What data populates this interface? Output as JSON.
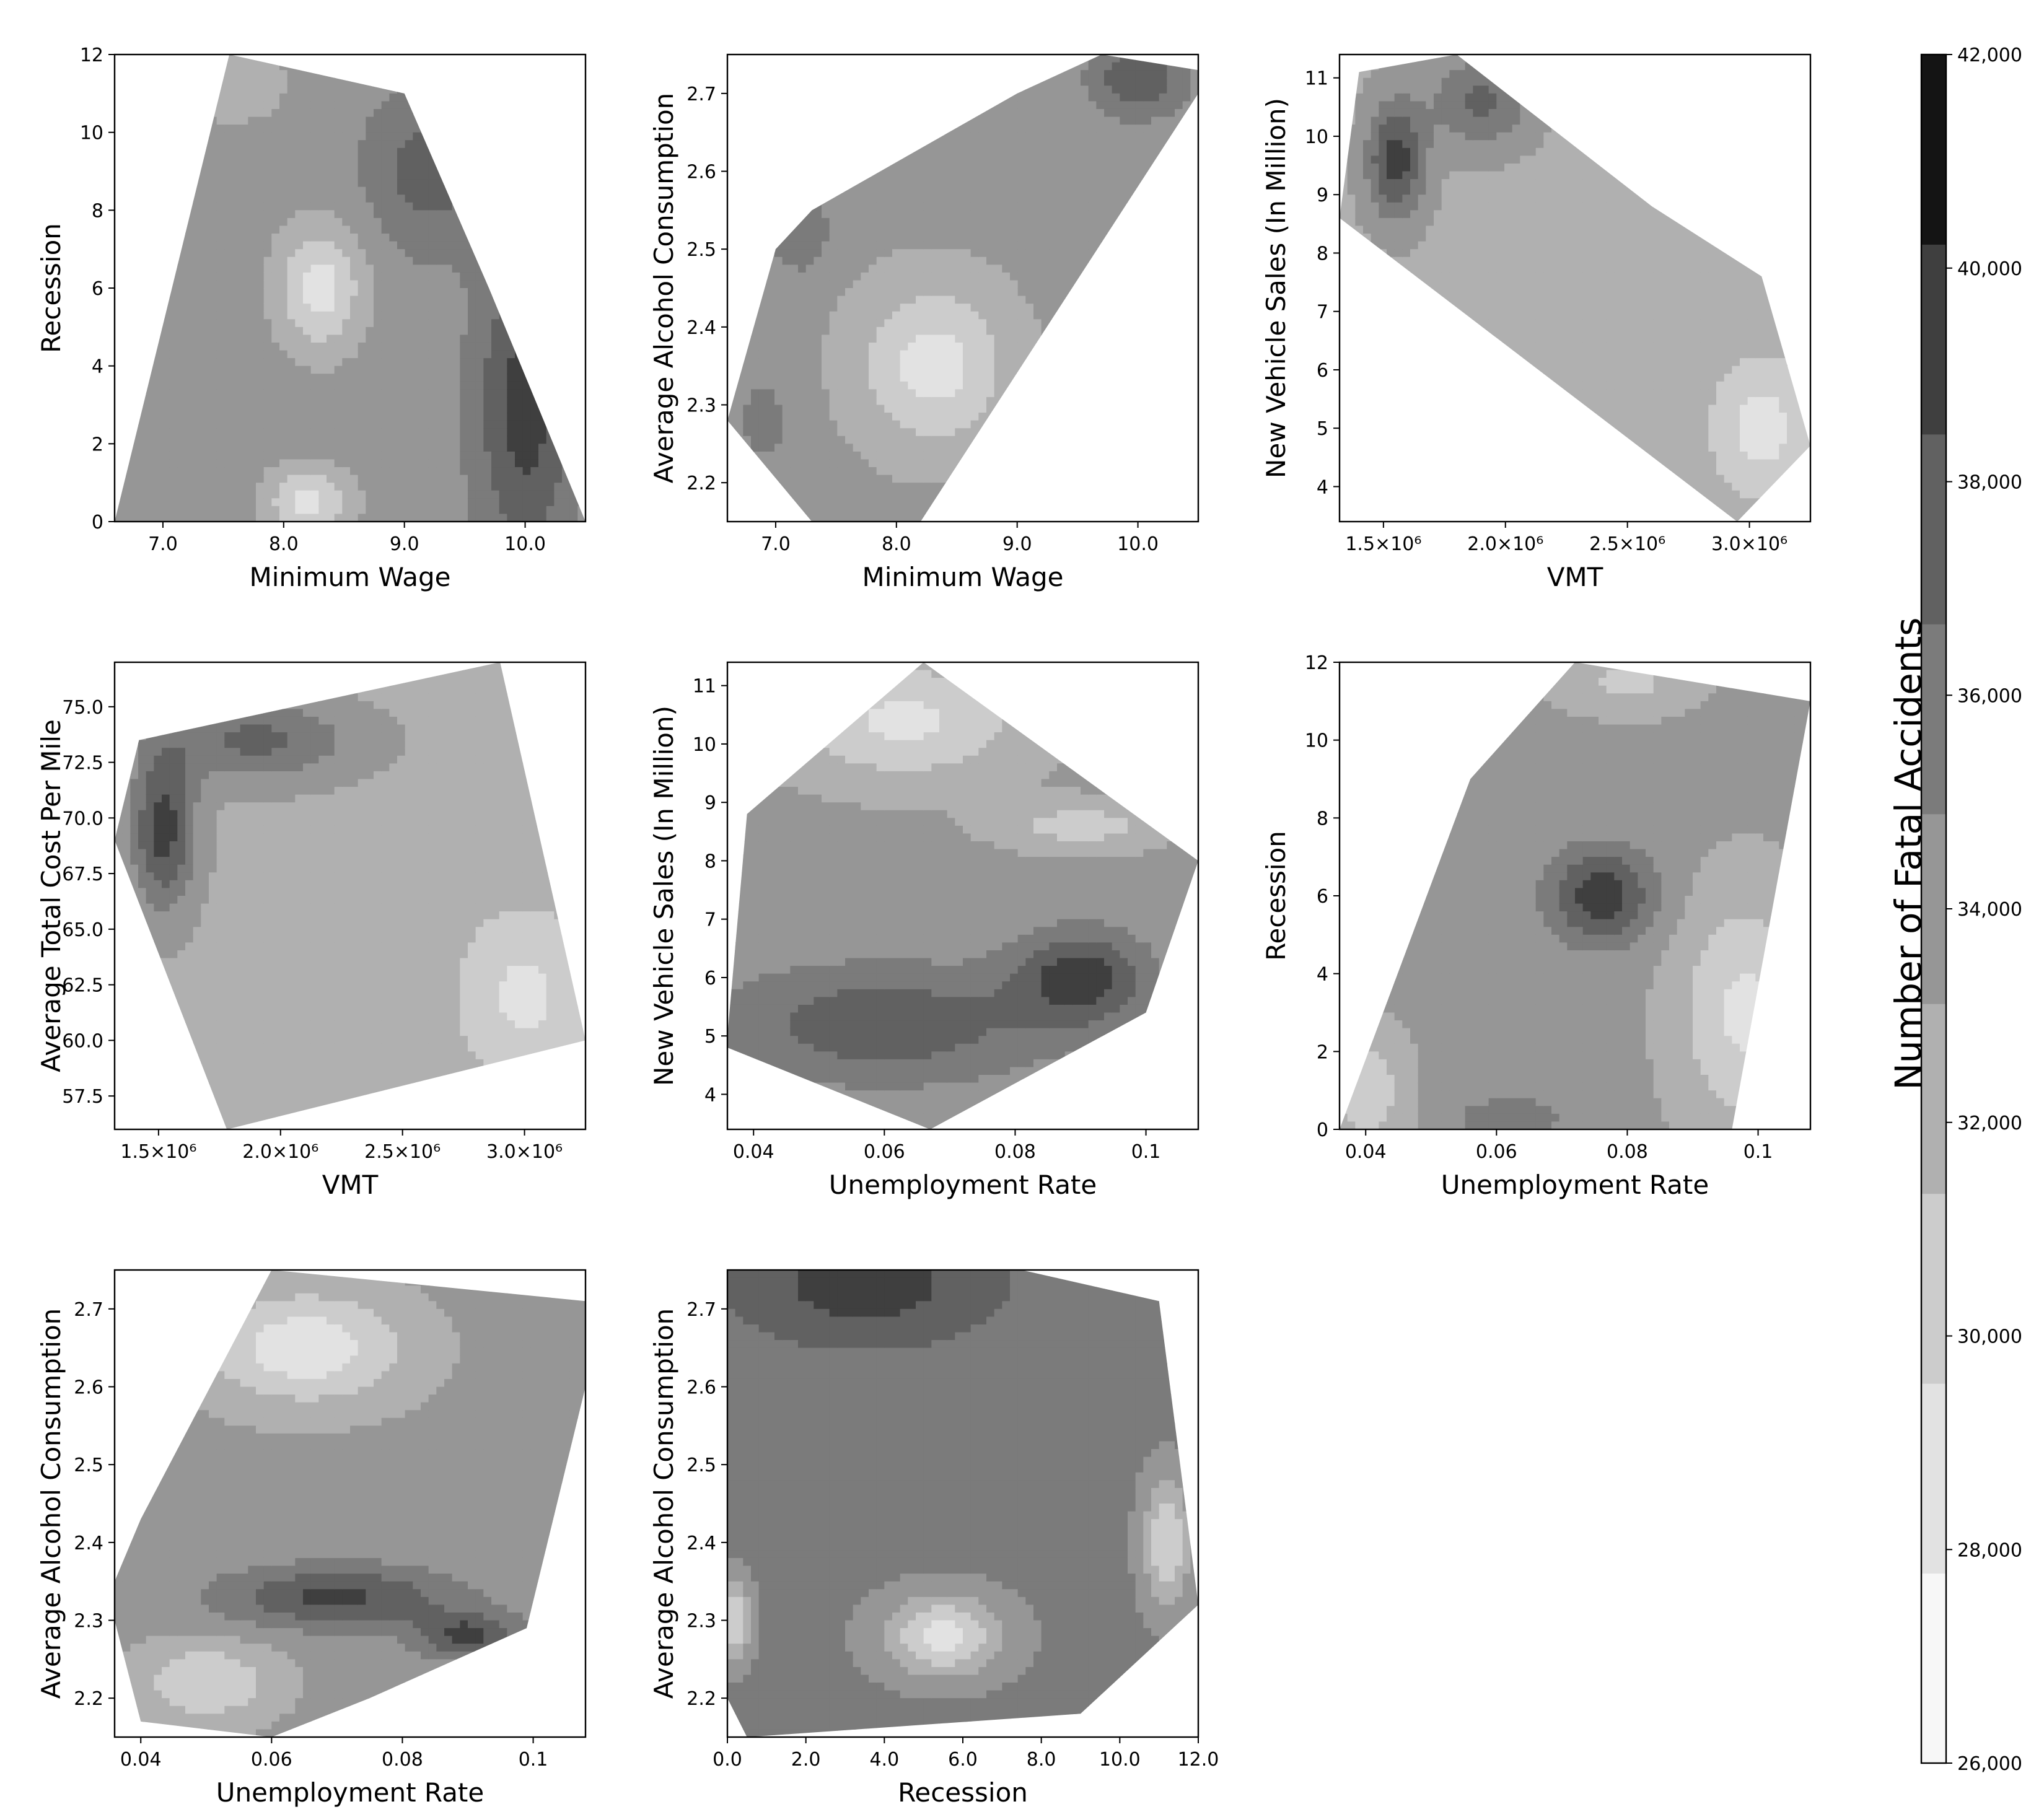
{
  "colorbar": {
    "label": "Number of Fatal Accidents",
    "levels": [
      26000,
      28000,
      30000,
      32000,
      34000,
      36000,
      38000,
      40000,
      42000
    ],
    "tick_labels": [
      "26,000",
      "28,000",
      "30,000",
      "32,000",
      "34,000",
      "36,000",
      "38,000",
      "40,000",
      "42,000"
    ],
    "colors": [
      "#f7f7f7",
      "#e2e2e2",
      "#cccccc",
      "#b0b0b0",
      "#969696",
      "#7b7b7b",
      "#616161",
      "#3f3f3f",
      "#141414"
    ]
  },
  "chart_data": [
    {
      "type": "contour",
      "xlabel": "Minimum Wage",
      "ylabel": "Recession",
      "xlim": [
        6.6,
        10.5
      ],
      "ylim": [
        0,
        12
      ],
      "xticks": [
        7.0,
        8.0,
        9.0,
        10.0
      ],
      "xtick_labels": [
        "7.0",
        "8.0",
        "9.0",
        "10.0"
      ],
      "yticks": [
        0,
        2,
        4,
        6,
        8,
        10,
        12
      ],
      "ytick_labels": [
        "0",
        "2",
        "4",
        "6",
        "8",
        "10",
        "12"
      ],
      "hull": [
        [
          6.6,
          0
        ],
        [
          7.55,
          12
        ],
        [
          9.0,
          11
        ],
        [
          9.7,
          6
        ],
        [
          10.5,
          0
        ]
      ],
      "peaks": [
        {
          "x": 10.0,
          "y": 3.0,
          "value": 41000,
          "sx": 0.4,
          "sy": 4.0
        },
        {
          "x": 9.2,
          "y": 9.0,
          "value": 39000,
          "sx": 0.5,
          "sy": 2.0
        }
      ],
      "pits": [
        {
          "x": 8.3,
          "y": 6.0,
          "value": 29000,
          "sx": 0.35,
          "sy": 1.6
        },
        {
          "x": 8.2,
          "y": 0.5,
          "value": 29500,
          "sx": 0.35,
          "sy": 0.9
        },
        {
          "x": 7.6,
          "y": 11.3,
          "value": 32000,
          "sx": 0.4,
          "sy": 1.0
        }
      ],
      "base": 35000
    },
    {
      "type": "contour",
      "xlabel": "Minimum Wage",
      "ylabel": "Average Alcohol Consumption",
      "xlim": [
        6.6,
        10.5
      ],
      "ylim": [
        2.15,
        2.75
      ],
      "xticks": [
        7.0,
        8.0,
        9.0,
        10.0
      ],
      "xtick_labels": [
        "7.0",
        "8.0",
        "9.0",
        "10.0"
      ],
      "yticks": [
        2.2,
        2.3,
        2.4,
        2.5,
        2.6,
        2.7
      ],
      "ytick_labels": [
        "2.2",
        "2.3",
        "2.4",
        "2.5",
        "2.6",
        "2.7"
      ],
      "hull": [
        [
          6.6,
          2.28
        ],
        [
          7.0,
          2.5
        ],
        [
          7.3,
          2.55
        ],
        [
          9.0,
          2.7
        ],
        [
          9.7,
          2.75
        ],
        [
          10.5,
          2.73
        ],
        [
          10.5,
          2.7
        ],
        [
          8.2,
          2.15
        ],
        [
          7.3,
          2.15
        ]
      ],
      "peaks": [
        {
          "x": 10.0,
          "y": 2.72,
          "value": 40000,
          "sx": 0.4,
          "sy": 0.05
        },
        {
          "x": 7.2,
          "y": 2.52,
          "value": 38000,
          "sx": 0.25,
          "sy": 0.05
        },
        {
          "x": 6.9,
          "y": 2.28,
          "value": 36500,
          "sx": 0.3,
          "sy": 0.08
        }
      ],
      "pits": [
        {
          "x": 8.3,
          "y": 2.35,
          "value": 29000,
          "sx": 0.6,
          "sy": 0.1
        }
      ],
      "base": 34500
    },
    {
      "type": "contour",
      "xlabel": "VMT",
      "ylabel": "New Vehicle Sales (In Million)",
      "xlim": [
        1320000,
        3250000
      ],
      "ylim": [
        3.4,
        11.4
      ],
      "xticks": [
        1500000,
        2000000,
        2500000,
        3000000
      ],
      "xtick_labels": [
        "1.5×10⁶",
        "2.0×10⁶",
        "2.5×10⁶",
        "3.0×10⁶"
      ],
      "yticks": [
        4,
        5,
        6,
        7,
        8,
        9,
        10,
        11
      ],
      "ytick_labels": [
        "4",
        "5",
        "6",
        "7",
        "8",
        "9",
        "10",
        "11"
      ],
      "hull": [
        [
          1320000,
          8.6
        ],
        [
          1400000,
          11.1
        ],
        [
          1800000,
          11.4
        ],
        [
          2600000,
          8.8
        ],
        [
          3050000,
          7.6
        ],
        [
          3250000,
          4.7
        ],
        [
          2950000,
          3.4
        ]
      ],
      "peaks": [
        {
          "x": 1550000,
          "y": 9.6,
          "value": 41000,
          "sx": 120000,
          "sy": 1.0
        },
        {
          "x": 1900000,
          "y": 10.6,
          "value": 38500,
          "sx": 200000,
          "sy": 0.8
        }
      ],
      "pits": [
        {
          "x": 3050000,
          "y": 5.0,
          "value": 29000,
          "sx": 200000,
          "sy": 1.2
        }
      ],
      "base": 33500
    },
    {
      "type": "contour",
      "xlabel": "VMT",
      "ylabel": "Average Total Cost Per Mile",
      "xlim": [
        1320000,
        3250000
      ],
      "ylim": [
        56,
        77
      ],
      "xticks": [
        1500000,
        2000000,
        2500000,
        3000000
      ],
      "xtick_labels": [
        "1.5×10⁶",
        "2.0×10⁶",
        "2.5×10⁶",
        "3.0×10⁶"
      ],
      "yticks": [
        57.5,
        60.0,
        62.5,
        65.0,
        67.5,
        70.0,
        72.5,
        75.0
      ],
      "ytick_labels": [
        "57.5",
        "60.0",
        "62.5",
        "65.0",
        "67.5",
        "70.0",
        "72.5",
        "75.0"
      ],
      "hull": [
        [
          1320000,
          69
        ],
        [
          1420000,
          73.5
        ],
        [
          2900000,
          77
        ],
        [
          3250000,
          60
        ],
        [
          1780000,
          56
        ]
      ],
      "peaks": [
        {
          "x": 1520000,
          "y": 69.5,
          "value": 41000,
          "sx": 130000,
          "sy": 3.5
        },
        {
          "x": 1900000,
          "y": 73.5,
          "value": 38500,
          "sx": 400000,
          "sy": 1.8
        }
      ],
      "pits": [
        {
          "x": 3000000,
          "y": 62.0,
          "value": 29500,
          "sx": 280000,
          "sy": 4.0
        }
      ],
      "base": 33500
    },
    {
      "type": "contour",
      "xlabel": "Unemployment Rate",
      "ylabel": "New Vehicle Sales (In Million)",
      "xlim": [
        0.036,
        0.108
      ],
      "ylim": [
        3.4,
        11.4
      ],
      "xticks": [
        0.04,
        0.06,
        0.08,
        0.1
      ],
      "xtick_labels": [
        "0.04",
        "0.06",
        "0.08",
        "0.1"
      ],
      "yticks": [
        4,
        5,
        6,
        7,
        8,
        9,
        10,
        11
      ],
      "ytick_labels": [
        "4",
        "5",
        "6",
        "7",
        "8",
        "9",
        "10",
        "11"
      ],
      "hull": [
        [
          0.036,
          5.0
        ],
        [
          0.039,
          8.8
        ],
        [
          0.066,
          11.4
        ],
        [
          0.108,
          8.0
        ],
        [
          0.1,
          5.4
        ],
        [
          0.067,
          3.4
        ],
        [
          0.036,
          4.8
        ]
      ],
      "peaks": [
        {
          "x": 0.09,
          "y": 6.0,
          "value": 41000,
          "sx": 0.01,
          "sy": 0.8
        },
        {
          "x": 0.06,
          "y": 5.2,
          "value": 39500,
          "sx": 0.025,
          "sy": 1.0
        }
      ],
      "pits": [
        {
          "x": 0.063,
          "y": 10.4,
          "value": 29500,
          "sx": 0.018,
          "sy": 1.0
        },
        {
          "x": 0.09,
          "y": 8.6,
          "value": 31000,
          "sx": 0.012,
          "sy": 0.4
        }
      ],
      "base": 34500
    },
    {
      "type": "contour",
      "xlabel": "Unemployment Rate",
      "ylabel": "Recession",
      "xlim": [
        0.036,
        0.108
      ],
      "ylim": [
        0,
        12
      ],
      "xticks": [
        0.04,
        0.06,
        0.08,
        0.1
      ],
      "xtick_labels": [
        "0.04",
        "0.06",
        "0.08",
        "0.1"
      ],
      "yticks": [
        0,
        2,
        4,
        6,
        8,
        10,
        12
      ],
      "ytick_labels": [
        "0",
        "2",
        "4",
        "6",
        "8",
        "10",
        "12"
      ],
      "hull": [
        [
          0.036,
          0
        ],
        [
          0.056,
          9
        ],
        [
          0.072,
          12
        ],
        [
          0.108,
          11
        ],
        [
          0.096,
          0
        ]
      ],
      "peaks": [
        {
          "x": 0.076,
          "y": 6.0,
          "value": 41500,
          "sx": 0.008,
          "sy": 1.2
        },
        {
          "x": 0.062,
          "y": 0.3,
          "value": 38000,
          "sx": 0.008,
          "sy": 0.5
        }
      ],
      "pits": [
        {
          "x": 0.098,
          "y": 3.0,
          "value": 29500,
          "sx": 0.01,
          "sy": 3.0
        },
        {
          "x": 0.04,
          "y": 1.0,
          "value": 30500,
          "sx": 0.006,
          "sy": 1.5
        },
        {
          "x": 0.08,
          "y": 11.5,
          "value": 31500,
          "sx": 0.01,
          "sy": 0.8
        }
      ],
      "base": 34500
    },
    {
      "type": "contour",
      "xlabel": "Unemployment Rate",
      "ylabel": "Average Alcohol Consumption",
      "xlim": [
        0.036,
        0.108
      ],
      "ylim": [
        2.15,
        2.75
      ],
      "xticks": [
        0.04,
        0.06,
        0.08,
        0.1
      ],
      "xtick_labels": [
        "0.04",
        "0.06",
        "0.08",
        "0.1"
      ],
      "yticks": [
        2.2,
        2.3,
        2.4,
        2.5,
        2.6,
        2.7
      ],
      "ytick_labels": [
        "2.2",
        "2.3",
        "2.4",
        "2.5",
        "2.6",
        "2.7"
      ],
      "hull": [
        [
          0.036,
          2.35
        ],
        [
          0.04,
          2.43
        ],
        [
          0.06,
          2.75
        ],
        [
          0.108,
          2.71
        ],
        [
          0.108,
          2.6
        ],
        [
          0.099,
          2.29
        ],
        [
          0.075,
          2.2
        ],
        [
          0.06,
          2.15
        ],
        [
          0.04,
          2.17
        ],
        [
          0.036,
          2.3
        ]
      ],
      "peaks": [
        {
          "x": 0.07,
          "y": 2.33,
          "value": 40500,
          "sx": 0.018,
          "sy": 0.04
        },
        {
          "x": 0.09,
          "y": 2.28,
          "value": 40500,
          "sx": 0.008,
          "sy": 0.03
        }
      ],
      "pits": [
        {
          "x": 0.065,
          "y": 2.65,
          "value": 28500,
          "sx": 0.015,
          "sy": 0.07
        },
        {
          "x": 0.05,
          "y": 2.22,
          "value": 30000,
          "sx": 0.01,
          "sy": 0.05
        }
      ],
      "base": 34500
    },
    {
      "type": "contour",
      "xlabel": "Recession",
      "ylabel": "Average Alcohol Consumption",
      "xlim": [
        0,
        12
      ],
      "ylim": [
        2.15,
        2.75
      ],
      "xticks": [
        0,
        2,
        4,
        6,
        8,
        10,
        12
      ],
      "xtick_labels": [
        "0.0",
        "2.0",
        "4.0",
        "6.0",
        "8.0",
        "10.0",
        "12.0"
      ],
      "yticks": [
        2.2,
        2.3,
        2.4,
        2.5,
        2.6,
        2.7
      ],
      "ytick_labels": [
        "2.2",
        "2.3",
        "2.4",
        "2.5",
        "2.6",
        "2.7"
      ],
      "hull": [
        [
          0,
          2.75
        ],
        [
          7.5,
          2.75
        ],
        [
          11,
          2.71
        ],
        [
          12,
          2.32
        ],
        [
          9,
          2.18
        ],
        [
          0.5,
          2.15
        ],
        [
          0,
          2.2
        ]
      ],
      "peaks": [
        {
          "x": 3.5,
          "y": 2.73,
          "value": 41000,
          "sx": 3.5,
          "sy": 0.08
        }
      ],
      "pits": [
        {
          "x": 5.5,
          "y": 2.28,
          "value": 29000,
          "sx": 1.5,
          "sy": 0.05
        },
        {
          "x": 11.2,
          "y": 2.4,
          "value": 30000,
          "sx": 0.6,
          "sy": 0.08
        },
        {
          "x": 0.2,
          "y": 2.3,
          "value": 30000,
          "sx": 0.4,
          "sy": 0.05
        }
      ],
      "base": 36500
    }
  ]
}
